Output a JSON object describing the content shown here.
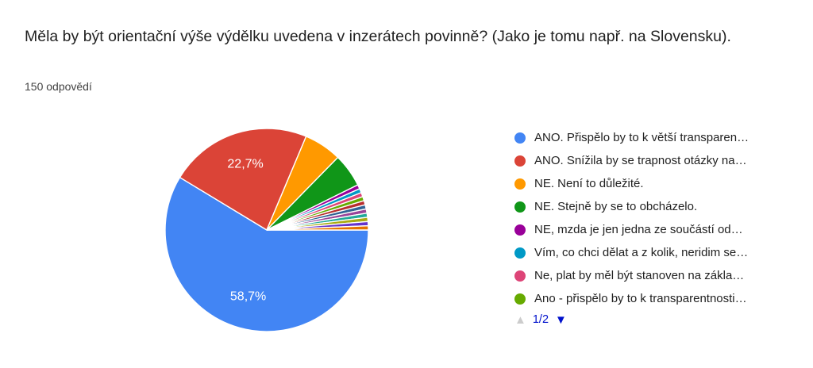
{
  "header": {
    "title": "Měla by být orientační výše výdělku uvedena v inzerátech povinně? (Jako je tomu např. na Slovensku).",
    "responses_count": "150 odpovědí"
  },
  "chart_data": {
    "type": "pie",
    "title": "Měla by být orientační výše výdělku uvedena v inzerátech povinně? (Jako je tomu např. na Slovensku).",
    "total_responses": 150,
    "legend_position": "right",
    "start_at": "3-oclock-clockwise",
    "slices": [
      {
        "label": "ANO. Přispělo by to k větší transparen…",
        "count": 88,
        "percent": 58.7,
        "percent_label": "58,7%",
        "color": "#4285F4"
      },
      {
        "label": "ANO. Snížila by se trapnost otázky na…",
        "count": 34,
        "percent": 22.7,
        "percent_label": "22,7%",
        "color": "#DB4437"
      },
      {
        "label": "NE. Není to důležité.",
        "count": 9,
        "percent": 6.0,
        "percent_label": "",
        "color": "#FF9900"
      },
      {
        "label": "NE. Stejně by se to obcházelo.",
        "count": 8,
        "percent": 5.3,
        "percent_label": "",
        "color": "#109618"
      },
      {
        "label": "NE, mzda je jen jedna ze součástí od…",
        "count": 1,
        "percent": 0.7,
        "percent_label": "",
        "color": "#990099"
      },
      {
        "label": "Vím, co chci dělat a z kolik, neridim se…",
        "count": 1,
        "percent": 0.7,
        "percent_label": "",
        "color": "#0099C6"
      },
      {
        "label": "Ne, plat by měl být stanoven na zákla…",
        "count": 1,
        "percent": 0.7,
        "percent_label": "",
        "color": "#DD4477"
      },
      {
        "label": "Ano - přispělo by to k transparentnosti…",
        "count": 1,
        "percent": 0.7,
        "percent_label": "",
        "color": "#66AA00"
      },
      {
        "label": "",
        "count": 1,
        "percent": 0.7,
        "percent_label": "",
        "color": "#B82E2E"
      },
      {
        "label": "",
        "count": 1,
        "percent": 0.7,
        "percent_label": "",
        "color": "#316395"
      },
      {
        "label": "",
        "count": 1,
        "percent": 0.7,
        "percent_label": "",
        "color": "#994499"
      },
      {
        "label": "",
        "count": 1,
        "percent": 0.7,
        "percent_label": "",
        "color": "#22AA99"
      },
      {
        "label": "",
        "count": 1,
        "percent": 0.7,
        "percent_label": "",
        "color": "#AAAA11"
      },
      {
        "label": "",
        "count": 1,
        "percent": 0.7,
        "percent_label": "",
        "color": "#6633CC"
      },
      {
        "label": "",
        "count": 1,
        "percent": 0.7,
        "percent_label": "",
        "color": "#E67300"
      }
    ]
  },
  "legend": {
    "visible_count": 8,
    "pager": {
      "up_icon": "▲",
      "down_icon": "▼",
      "page_label": "1/2",
      "active_color": "#0011CC",
      "disabled_color": "#CCCCCC"
    }
  }
}
